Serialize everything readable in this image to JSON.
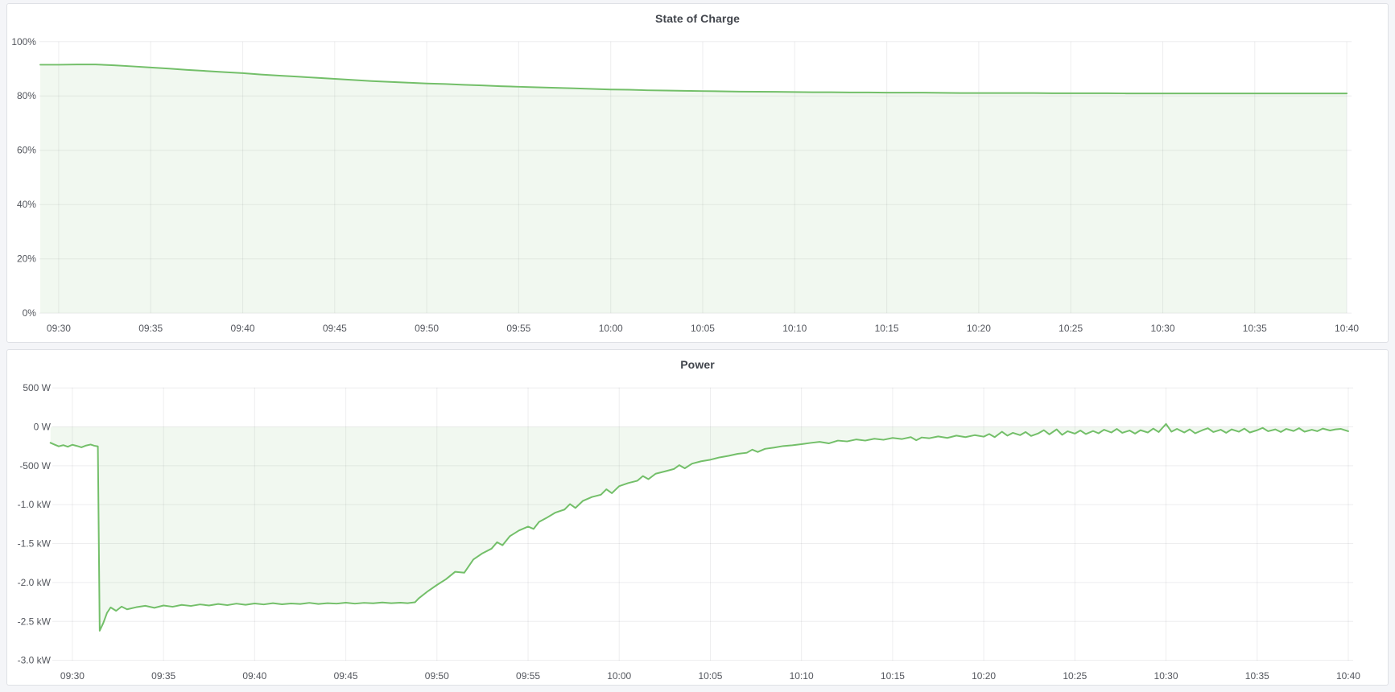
{
  "chart_data": [
    {
      "type": "area",
      "title": "State of Charge",
      "xlabel": "",
      "ylabel": "",
      "unit": "percent",
      "legend": "none",
      "grid": true,
      "x_unit": "minutes_from_09:30",
      "x_range_minutes": [
        -1,
        70
      ],
      "y_range": [
        0,
        100
      ],
      "color": {
        "line": "#73bf69",
        "fill": "rgba(115,191,105,0.10)"
      },
      "y_ticks": [
        {
          "value": 100,
          "label": "100%"
        },
        {
          "value": 80,
          "label": "80%"
        },
        {
          "value": 60,
          "label": "60%"
        },
        {
          "value": 40,
          "label": "40%"
        },
        {
          "value": 20,
          "label": "20%"
        },
        {
          "value": 0,
          "label": "0%"
        }
      ],
      "x_ticks": [
        {
          "t": 0,
          "label": "09:30"
        },
        {
          "t": 5,
          "label": "09:35"
        },
        {
          "t": 10,
          "label": "09:40"
        },
        {
          "t": 15,
          "label": "09:45"
        },
        {
          "t": 20,
          "label": "09:50"
        },
        {
          "t": 25,
          "label": "09:55"
        },
        {
          "t": 30,
          "label": "10:00"
        },
        {
          "t": 35,
          "label": "10:05"
        },
        {
          "t": 40,
          "label": "10:10"
        },
        {
          "t": 45,
          "label": "10:15"
        },
        {
          "t": 50,
          "label": "10:20"
        },
        {
          "t": 55,
          "label": "10:25"
        },
        {
          "t": 60,
          "label": "10:30"
        },
        {
          "t": 65,
          "label": "10:35"
        },
        {
          "t": 70,
          "label": "10:40"
        }
      ],
      "points": [
        [
          -1,
          91.5
        ],
        [
          0,
          91.5
        ],
        [
          1,
          91.6
        ],
        [
          2,
          91.6
        ],
        [
          3,
          91.3
        ],
        [
          4,
          90.9
        ],
        [
          5,
          90.5
        ],
        [
          6,
          90.1
        ],
        [
          7,
          89.6
        ],
        [
          8,
          89.2
        ],
        [
          9,
          88.8
        ],
        [
          10,
          88.4
        ],
        [
          11,
          87.9
        ],
        [
          12,
          87.5
        ],
        [
          13,
          87.1
        ],
        [
          14,
          86.7
        ],
        [
          15,
          86.3
        ],
        [
          16,
          85.9
        ],
        [
          17,
          85.5
        ],
        [
          18,
          85.2
        ],
        [
          19,
          84.9
        ],
        [
          20,
          84.6
        ],
        [
          21,
          84.4
        ],
        [
          22,
          84.1
        ],
        [
          23,
          83.9
        ],
        [
          24,
          83.6
        ],
        [
          25,
          83.4
        ],
        [
          26,
          83.2
        ],
        [
          27,
          83.0
        ],
        [
          28,
          82.8
        ],
        [
          29,
          82.6
        ],
        [
          30,
          82.4
        ],
        [
          31,
          82.3
        ],
        [
          32,
          82.1
        ],
        [
          33,
          82.0
        ],
        [
          34,
          81.9
        ],
        [
          35,
          81.8
        ],
        [
          36,
          81.7
        ],
        [
          37,
          81.6
        ],
        [
          38,
          81.55
        ],
        [
          39,
          81.5
        ],
        [
          40,
          81.45
        ],
        [
          41,
          81.4
        ],
        [
          42,
          81.35
        ],
        [
          43,
          81.3
        ],
        [
          44,
          81.3
        ],
        [
          45,
          81.25
        ],
        [
          46,
          81.2
        ],
        [
          47,
          81.2
        ],
        [
          48,
          81.15
        ],
        [
          49,
          81.1
        ],
        [
          50,
          81.1
        ],
        [
          51,
          81.1
        ],
        [
          52,
          81.05
        ],
        [
          53,
          81.05
        ],
        [
          54,
          81.0
        ],
        [
          55,
          81.0
        ],
        [
          56,
          81.0
        ],
        [
          57,
          81.0
        ],
        [
          58,
          80.95
        ],
        [
          59,
          80.95
        ],
        [
          60,
          80.95
        ],
        [
          61,
          80.95
        ],
        [
          62,
          80.9
        ],
        [
          63,
          80.9
        ],
        [
          64,
          80.9
        ],
        [
          65,
          80.9
        ],
        [
          66,
          80.9
        ],
        [
          67,
          80.9
        ],
        [
          68,
          80.9
        ],
        [
          69,
          80.9
        ],
        [
          70,
          80.9
        ]
      ]
    },
    {
      "type": "area",
      "title": "Power",
      "xlabel": "",
      "ylabel": "",
      "unit": "watt",
      "legend": "none",
      "grid": true,
      "x_unit": "minutes_from_09:30",
      "x_range_minutes": [
        -1.2,
        70
      ],
      "y_range": [
        -3000,
        500
      ],
      "color": {
        "line": "#73bf69",
        "fill": "rgba(115,191,105,0.10)"
      },
      "y_ticks": [
        {
          "value": 500,
          "label": "500 W"
        },
        {
          "value": 0,
          "label": "0 W"
        },
        {
          "value": -500,
          "label": "-500 W"
        },
        {
          "value": -1000,
          "label": "-1.0 kW"
        },
        {
          "value": -1500,
          "label": "-1.5 kW"
        },
        {
          "value": -2000,
          "label": "-2.0 kW"
        },
        {
          "value": -2500,
          "label": "-2.5 kW"
        },
        {
          "value": -3000,
          "label": "-3.0 kW"
        }
      ],
      "x_ticks": [
        {
          "t": 0,
          "label": "09:30"
        },
        {
          "t": 5,
          "label": "09:35"
        },
        {
          "t": 10,
          "label": "09:40"
        },
        {
          "t": 15,
          "label": "09:45"
        },
        {
          "t": 20,
          "label": "09:50"
        },
        {
          "t": 25,
          "label": "09:55"
        },
        {
          "t": 30,
          "label": "10:00"
        },
        {
          "t": 35,
          "label": "10:05"
        },
        {
          "t": 40,
          "label": "10:10"
        },
        {
          "t": 45,
          "label": "10:15"
        },
        {
          "t": 50,
          "label": "10:20"
        },
        {
          "t": 55,
          "label": "10:25"
        },
        {
          "t": 60,
          "label": "10:30"
        },
        {
          "t": 65,
          "label": "10:35"
        },
        {
          "t": 70,
          "label": "10:40"
        }
      ],
      "points": [
        [
          -1.2,
          -205
        ],
        [
          -1,
          -225
        ],
        [
          -0.75,
          -250
        ],
        [
          -0.5,
          -235
        ],
        [
          -0.25,
          -255
        ],
        [
          0,
          -230
        ],
        [
          0.25,
          -245
        ],
        [
          0.5,
          -262
        ],
        [
          0.75,
          -240
        ],
        [
          1,
          -226
        ],
        [
          1.2,
          -242
        ],
        [
          1.4,
          -250
        ],
        [
          1.5,
          -2620
        ],
        [
          1.7,
          -2520
        ],
        [
          1.9,
          -2390
        ],
        [
          2.1,
          -2320
        ],
        [
          2.4,
          -2365
        ],
        [
          2.7,
          -2310
        ],
        [
          3,
          -2345
        ],
        [
          3.5,
          -2318
        ],
        [
          4,
          -2300
        ],
        [
          4.5,
          -2326
        ],
        [
          5,
          -2296
        ],
        [
          5.5,
          -2312
        ],
        [
          6,
          -2288
        ],
        [
          6.5,
          -2302
        ],
        [
          7,
          -2282
        ],
        [
          7.5,
          -2296
        ],
        [
          8,
          -2276
        ],
        [
          8.5,
          -2292
        ],
        [
          9,
          -2272
        ],
        [
          9.5,
          -2286
        ],
        [
          10,
          -2270
        ],
        [
          10.5,
          -2282
        ],
        [
          11,
          -2266
        ],
        [
          11.5,
          -2280
        ],
        [
          12,
          -2270
        ],
        [
          12.5,
          -2276
        ],
        [
          13,
          -2262
        ],
        [
          13.5,
          -2276
        ],
        [
          14,
          -2266
        ],
        [
          14.5,
          -2272
        ],
        [
          15,
          -2260
        ],
        [
          15.5,
          -2272
        ],
        [
          16,
          -2262
        ],
        [
          16.5,
          -2268
        ],
        [
          17,
          -2258
        ],
        [
          17.5,
          -2266
        ],
        [
          18,
          -2260
        ],
        [
          18.4,
          -2266
        ],
        [
          18.8,
          -2254
        ],
        [
          19,
          -2205
        ],
        [
          19.5,
          -2112
        ],
        [
          20,
          -2032
        ],
        [
          20.5,
          -1958
        ],
        [
          21,
          -1862
        ],
        [
          21.5,
          -1875
        ],
        [
          22,
          -1705
        ],
        [
          22.5,
          -1624
        ],
        [
          23,
          -1565
        ],
        [
          23.3,
          -1482
        ],
        [
          23.6,
          -1522
        ],
        [
          24,
          -1405
        ],
        [
          24.5,
          -1332
        ],
        [
          25,
          -1282
        ],
        [
          25.3,
          -1312
        ],
        [
          25.6,
          -1222
        ],
        [
          26,
          -1172
        ],
        [
          26.5,
          -1102
        ],
        [
          27,
          -1062
        ],
        [
          27.3,
          -992
        ],
        [
          27.6,
          -1042
        ],
        [
          28,
          -952
        ],
        [
          28.5,
          -902
        ],
        [
          29,
          -872
        ],
        [
          29.3,
          -802
        ],
        [
          29.6,
          -852
        ],
        [
          30,
          -762
        ],
        [
          30.5,
          -722
        ],
        [
          31,
          -692
        ],
        [
          31.3,
          -632
        ],
        [
          31.6,
          -672
        ],
        [
          32,
          -602
        ],
        [
          32.5,
          -572
        ],
        [
          33,
          -542
        ],
        [
          33.3,
          -492
        ],
        [
          33.6,
          -532
        ],
        [
          34,
          -472
        ],
        [
          34.5,
          -442
        ],
        [
          35,
          -422
        ],
        [
          35.5,
          -392
        ],
        [
          36,
          -372
        ],
        [
          36.5,
          -346
        ],
        [
          37,
          -332
        ],
        [
          37.3,
          -292
        ],
        [
          37.6,
          -322
        ],
        [
          38,
          -282
        ],
        [
          38.5,
          -266
        ],
        [
          39,
          -246
        ],
        [
          39.5,
          -236
        ],
        [
          40,
          -222
        ],
        [
          40.5,
          -206
        ],
        [
          41,
          -192
        ],
        [
          41.5,
          -212
        ],
        [
          42,
          -176
        ],
        [
          42.5,
          -186
        ],
        [
          43,
          -162
        ],
        [
          43.5,
          -176
        ],
        [
          44,
          -152
        ],
        [
          44.5,
          -166
        ],
        [
          45,
          -142
        ],
        [
          45.5,
          -156
        ],
        [
          46,
          -132
        ],
        [
          46.3,
          -172
        ],
        [
          46.6,
          -136
        ],
        [
          47,
          -146
        ],
        [
          47.5,
          -122
        ],
        [
          48,
          -142
        ],
        [
          48.5,
          -112
        ],
        [
          49,
          -132
        ],
        [
          49.5,
          -106
        ],
        [
          50,
          -126
        ],
        [
          50.3,
          -92
        ],
        [
          50.6,
          -132
        ],
        [
          51,
          -62
        ],
        [
          51.3,
          -112
        ],
        [
          51.6,
          -76
        ],
        [
          52,
          -106
        ],
        [
          52.3,
          -66
        ],
        [
          52.6,
          -116
        ],
        [
          53,
          -82
        ],
        [
          53.3,
          -42
        ],
        [
          53.6,
          -96
        ],
        [
          54,
          -32
        ],
        [
          54.3,
          -102
        ],
        [
          54.6,
          -56
        ],
        [
          55,
          -86
        ],
        [
          55.3,
          -46
        ],
        [
          55.6,
          -92
        ],
        [
          56,
          -52
        ],
        [
          56.3,
          -82
        ],
        [
          56.6,
          -36
        ],
        [
          57,
          -72
        ],
        [
          57.3,
          -26
        ],
        [
          57.6,
          -76
        ],
        [
          58,
          -46
        ],
        [
          58.3,
          -86
        ],
        [
          58.6,
          -42
        ],
        [
          59,
          -72
        ],
        [
          59.3,
          -22
        ],
        [
          59.6,
          -66
        ],
        [
          60,
          38
        ],
        [
          60.3,
          -62
        ],
        [
          60.6,
          -26
        ],
        [
          61,
          -72
        ],
        [
          61.3,
          -32
        ],
        [
          61.6,
          -82
        ],
        [
          62,
          -42
        ],
        [
          62.3,
          -16
        ],
        [
          62.6,
          -66
        ],
        [
          63,
          -36
        ],
        [
          63.3,
          -76
        ],
        [
          63.6,
          -32
        ],
        [
          64,
          -62
        ],
        [
          64.3,
          -22
        ],
        [
          64.6,
          -72
        ],
        [
          65,
          -42
        ],
        [
          65.3,
          -12
        ],
        [
          65.6,
          -56
        ],
        [
          66,
          -32
        ],
        [
          66.3,
          -66
        ],
        [
          66.6,
          -26
        ],
        [
          67,
          -52
        ],
        [
          67.3,
          -16
        ],
        [
          67.6,
          -62
        ],
        [
          68,
          -36
        ],
        [
          68.3,
          -56
        ],
        [
          68.6,
          -22
        ],
        [
          69,
          -46
        ],
        [
          69.3,
          -32
        ],
        [
          69.6,
          -26
        ],
        [
          70,
          -56
        ]
      ]
    }
  ]
}
